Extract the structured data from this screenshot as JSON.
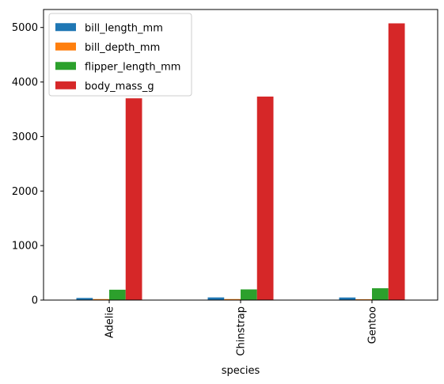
{
  "chart_data": {
    "type": "bar",
    "categories": [
      "Adelie",
      "Chinstrap",
      "Gentoo"
    ],
    "series": [
      {
        "name": "bill_length_mm",
        "values": [
          38.8,
          48.8,
          47.5
        ],
        "color": "#1f77b4"
      },
      {
        "name": "bill_depth_mm",
        "values": [
          18.3,
          18.4,
          15.0
        ],
        "color": "#ff7f0e"
      },
      {
        "name": "flipper_length_mm",
        "values": [
          190,
          196,
          217
        ],
        "color": "#2ca02c"
      },
      {
        "name": "body_mass_g",
        "values": [
          3701,
          3733,
          5076
        ],
        "color": "#d62728"
      }
    ],
    "title": "",
    "xlabel": "species",
    "ylabel": "",
    "ylim": [
      0,
      5330
    ],
    "yticks": [
      0,
      1000,
      2000,
      3000,
      4000,
      5000
    ],
    "grid": false,
    "legend_position": "top-left"
  }
}
